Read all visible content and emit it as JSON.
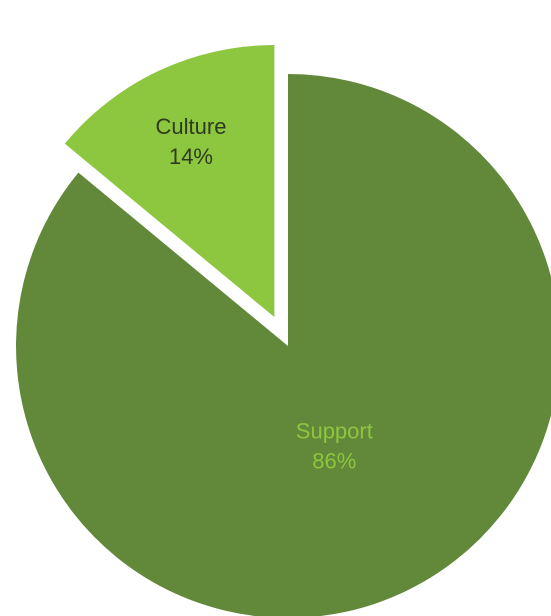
{
  "chart_data": {
    "type": "pie",
    "title": "",
    "slices": [
      {
        "name": "Support",
        "value": 86,
        "value_label": "86%",
        "color": "#62883a",
        "label_color": "#8dc63f",
        "exploded": false
      },
      {
        "name": "Culture",
        "value": 14,
        "value_label": "14%",
        "color": "#8dc63f",
        "label_color": "#2f3b1f",
        "exploded": true
      }
    ],
    "start_angle_deg": 0,
    "direction": "clockwise",
    "legend": "none"
  }
}
